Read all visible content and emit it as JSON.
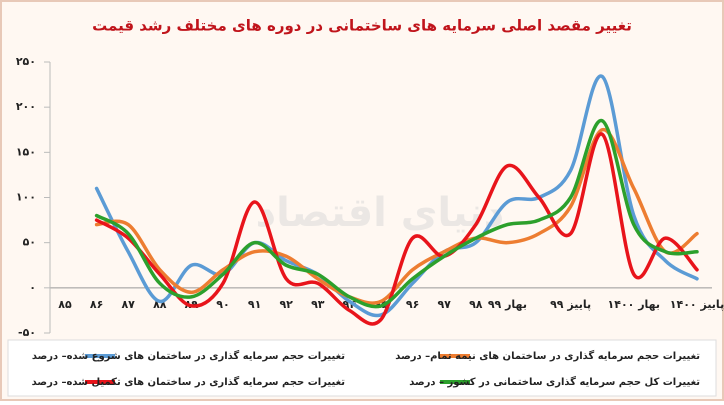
{
  "chart_data": {
    "type": "line",
    "title": "تغییر مقصد اصلی سرمایه های ساختمانی در دوره های مختلف رشد قیمت",
    "watermark": "دنیای اقتصاد",
    "categories": [
      "۸۵",
      "۸۶",
      "۸۷",
      "۸۸",
      "۸۹",
      "۹۰",
      "۹۱",
      "۹۲",
      "۹۳",
      "۹۴",
      "۹۵",
      "۹۶",
      "۹۷",
      "۹۸",
      "بهار ۹۹",
      null,
      "پاییز ۹۹",
      null,
      "بهار ۱۴۰۰",
      null,
      "پاییز ۱۴۰۰"
    ],
    "series": [
      {
        "name": "تغییرات حجم سرمایه گذاری در ساختمان های شروع شده– درصد",
        "color": "#5b9bd5",
        "values": [
          null,
          110,
          40,
          -15,
          25,
          15,
          50,
          30,
          15,
          -15,
          -30,
          5,
          40,
          50,
          95,
          100,
          130,
          234,
          80,
          30,
          10
        ]
      },
      {
        "name": "تغییرات حجم سرمایه گذاری در ساختمان های نیمه تمام– درصد",
        "color": "#ed7d31",
        "values": [
          null,
          70,
          70,
          20,
          -5,
          20,
          40,
          35,
          10,
          -10,
          -15,
          20,
          40,
          55,
          50,
          60,
          90,
          175,
          110,
          40,
          60
        ]
      },
      {
        "name": "تغییرات حجم سرمایه گذاری در ساختمان های تکمیل شده– درصد",
        "color": "#e8141b",
        "values": [
          null,
          75,
          55,
          15,
          -20,
          5,
          95,
          10,
          5,
          -25,
          -35,
          55,
          35,
          70,
          135,
          100,
          60,
          170,
          15,
          55,
          20
        ]
      },
      {
        "name": "تغییرات کل حجم سرمایه گذاری ساختمانی در کشور – درصد",
        "color": "#2ca02c",
        "values": [
          null,
          80,
          60,
          5,
          -10,
          15,
          50,
          25,
          15,
          -10,
          -20,
          10,
          35,
          55,
          70,
          75,
          100,
          185,
          70,
          40,
          40
        ]
      }
    ],
    "ylim": [
      -50,
      250
    ],
    "yticks": [
      {
        "value": 250,
        "label": "۲۵۰"
      },
      {
        "value": 200,
        "label": "۲۰۰"
      },
      {
        "value": 150,
        "label": "۱۵۰"
      },
      {
        "value": 100,
        "label": "۱۰۰"
      },
      {
        "value": 50,
        "label": "۵۰"
      },
      {
        "value": 0,
        "label": "۰"
      },
      {
        "value": -50,
        "label": "-۵۰"
      }
    ],
    "grid": false
  }
}
